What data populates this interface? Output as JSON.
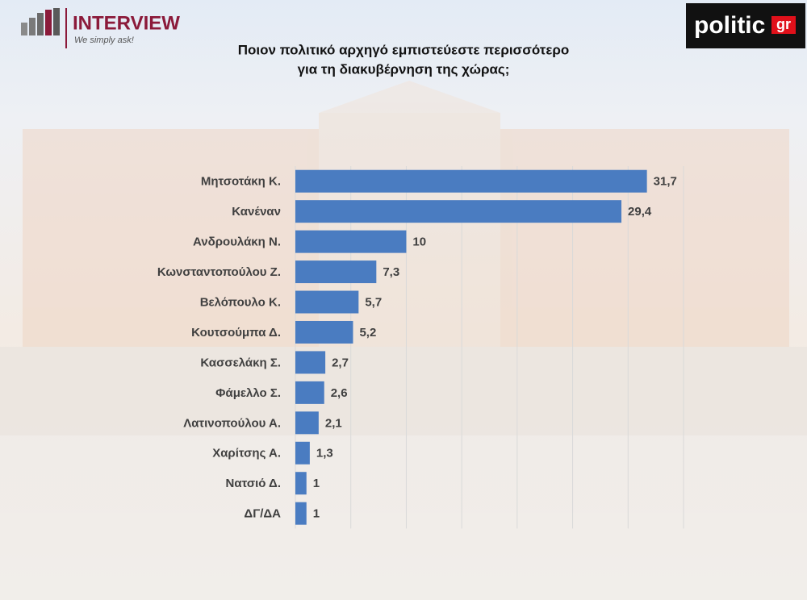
{
  "header": {
    "left_logo": "INTERVIEW",
    "left_tagline": "We simply ask!",
    "right_logo": "politic",
    "right_logo_suffix": "gr"
  },
  "chart_data": {
    "type": "barh",
    "title": "Ποιον πολιτικό αρχηγό εμπιστεύεστε περισσότερο",
    "subtitle": "για τη διακυβέρνηση της χώρας;",
    "categories": [
      "Μητσοτάκη Κ.",
      "Κανέναν",
      "Ανδρουλάκη Ν.",
      "Κωνσταντοπούλου Ζ.",
      "Βελόπουλο Κ.",
      "Κουτσούμπα Δ.",
      "Κασσελάκη Σ.",
      "Φάμελλο Σ.",
      "Λατινοπούλου Α.",
      "Χαρίτσης Α.",
      "Νατσιό Δ.",
      "ΔΓ/ΔΑ"
    ],
    "values": [
      31.7,
      29.4,
      10,
      7.3,
      5.7,
      5.2,
      2.7,
      2.6,
      2.1,
      1.3,
      1,
      1
    ],
    "value_labels": [
      "31,7",
      "29,4",
      "10",
      "7,3",
      "5,7",
      "5,2",
      "2,7",
      "2,6",
      "2,1",
      "1,3",
      "1",
      "1"
    ],
    "color": "#4a7cc1",
    "xlim": [
      0,
      35
    ],
    "xticks": [
      0,
      5,
      10,
      15,
      20,
      25,
      30,
      35
    ],
    "grid": true
  }
}
